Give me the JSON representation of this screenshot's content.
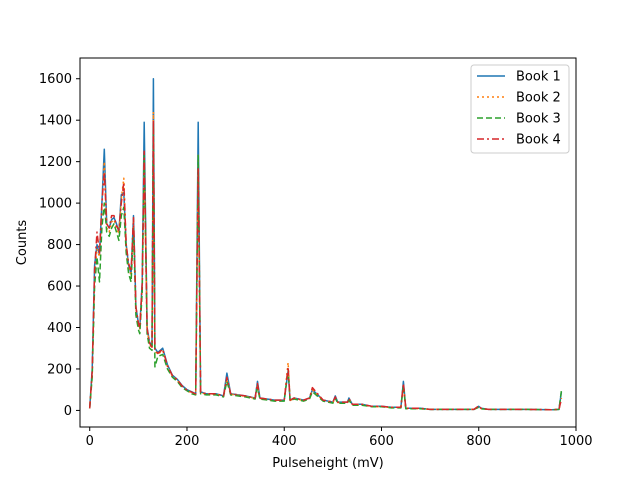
{
  "chart_data": {
    "type": "line",
    "xlabel": "Pulseheight (mV)",
    "ylabel": "Counts",
    "xlim": [
      -20,
      1000
    ],
    "ylim": [
      -80,
      1700
    ],
    "xticks": [
      0,
      200,
      400,
      600,
      800,
      1000
    ],
    "yticks": [
      0,
      200,
      400,
      600,
      800,
      1000,
      1200,
      1400,
      1600
    ],
    "legend_position": "top-right",
    "grid": false,
    "series": [
      {
        "name": "Book 1",
        "color": "#1f77b4",
        "dash": "solid",
        "x": [
          0,
          5,
          10,
          15,
          20,
          25,
          30,
          35,
          40,
          45,
          50,
          55,
          60,
          65,
          70,
          75,
          80,
          85,
          90,
          95,
          100,
          103,
          108,
          112,
          118,
          123,
          128,
          131,
          134,
          140,
          150,
          160,
          170,
          180,
          190,
          200,
          210,
          218,
          223,
          228,
          240,
          260,
          275,
          282,
          290,
          320,
          340,
          345,
          350,
          380,
          400,
          408,
          412,
          420,
          440,
          452,
          458,
          480,
          500,
          505,
          510,
          530,
          533,
          540,
          560,
          580,
          600,
          620,
          640,
          645,
          650,
          680,
          700,
          750,
          790,
          800,
          805,
          820,
          850,
          890,
          900,
          950,
          965,
          970
        ],
        "y": [
          10,
          200,
          700,
          800,
          750,
          1000,
          1260,
          900,
          880,
          920,
          930,
          900,
          860,
          1040,
          1050,
          800,
          700,
          660,
          940,
          500,
          420,
          400,
          620,
          1390,
          400,
          330,
          310,
          1600,
          300,
          280,
          300,
          220,
          170,
          150,
          120,
          100,
          90,
          80,
          1390,
          90,
          80,
          80,
          70,
          180,
          80,
          70,
          60,
          140,
          60,
          50,
          50,
          190,
          50,
          60,
          50,
          60,
          100,
          50,
          40,
          70,
          40,
          40,
          60,
          30,
          30,
          20,
          20,
          15,
          15,
          140,
          10,
          10,
          5,
          5,
          5,
          20,
          10,
          5,
          5,
          5,
          5,
          3,
          5,
          90
        ]
      },
      {
        "name": "Book 2",
        "color": "#ff7f0e",
        "dash": "dotted",
        "x": [
          0,
          5,
          10,
          15,
          20,
          25,
          30,
          35,
          40,
          45,
          50,
          55,
          60,
          65,
          70,
          75,
          80,
          85,
          90,
          95,
          100,
          103,
          108,
          112,
          118,
          123,
          128,
          131,
          134,
          140,
          150,
          160,
          170,
          180,
          190,
          200,
          210,
          218,
          223,
          228,
          240,
          260,
          275,
          282,
          290,
          320,
          340,
          345,
          350,
          380,
          400,
          408,
          412,
          420,
          440,
          452,
          458,
          480,
          500,
          505,
          510,
          530,
          533,
          540,
          560,
          580,
          600,
          620,
          640,
          645,
          650,
          680,
          700,
          750,
          790,
          800,
          805,
          820,
          850,
          890,
          900,
          950,
          965,
          970
        ],
        "y": [
          10,
          180,
          650,
          780,
          740,
          980,
          1200,
          880,
          860,
          910,
          920,
          880,
          850,
          1020,
          1120,
          790,
          690,
          650,
          920,
          490,
          410,
          390,
          600,
          1220,
          390,
          320,
          300,
          1440,
          290,
          270,
          290,
          210,
          165,
          145,
          115,
          95,
          85,
          78,
          1240,
          85,
          78,
          78,
          68,
          150,
          78,
          68,
          58,
          120,
          58,
          48,
          48,
          230,
          48,
          58,
          48,
          58,
          100,
          48,
          38,
          60,
          38,
          38,
          55,
          28,
          28,
          18,
          18,
          14,
          14,
          120,
          9,
          9,
          5,
          5,
          5,
          18,
          9,
          5,
          5,
          5,
          5,
          3,
          5,
          60
        ]
      },
      {
        "name": "Book 3",
        "color": "#2ca02c",
        "dash": "dashed",
        "x": [
          0,
          5,
          10,
          15,
          20,
          25,
          30,
          35,
          40,
          45,
          50,
          55,
          60,
          65,
          70,
          75,
          80,
          85,
          90,
          95,
          100,
          103,
          108,
          112,
          118,
          123,
          128,
          131,
          134,
          140,
          150,
          160,
          170,
          180,
          190,
          200,
          210,
          218,
          223,
          228,
          240,
          260,
          275,
          282,
          290,
          320,
          340,
          345,
          350,
          380,
          400,
          408,
          412,
          420,
          440,
          452,
          458,
          480,
          500,
          505,
          510,
          530,
          533,
          540,
          560,
          580,
          600,
          620,
          640,
          645,
          650,
          680,
          700,
          750,
          790,
          800,
          805,
          820,
          850,
          890,
          900,
          950,
          965,
          970
        ],
        "y": [
          10,
          160,
          600,
          740,
          620,
          880,
          1000,
          860,
          840,
          880,
          900,
          860,
          820,
          940,
          980,
          760,
          660,
          620,
          880,
          460,
          390,
          370,
          570,
          1240,
          370,
          300,
          290,
          1380,
          210,
          260,
          270,
          200,
          160,
          140,
          110,
          95,
          80,
          75,
          1230,
          80,
          75,
          75,
          65,
          140,
          75,
          65,
          55,
          110,
          55,
          45,
          45,
          200,
          45,
          55,
          45,
          55,
          90,
          45,
          35,
          60,
          35,
          35,
          50,
          25,
          25,
          18,
          18,
          12,
          12,
          120,
          8,
          8,
          5,
          5,
          5,
          15,
          8,
          5,
          5,
          5,
          5,
          3,
          5,
          95
        ]
      },
      {
        "name": "Book 4",
        "color": "#d62728",
        "dash": "dashdot",
        "x": [
          0,
          5,
          10,
          15,
          20,
          25,
          30,
          35,
          40,
          45,
          50,
          55,
          60,
          65,
          70,
          75,
          80,
          85,
          90,
          95,
          100,
          103,
          108,
          112,
          118,
          123,
          128,
          131,
          134,
          140,
          150,
          160,
          170,
          180,
          190,
          200,
          210,
          218,
          223,
          228,
          240,
          260,
          275,
          282,
          290,
          320,
          340,
          345,
          350,
          380,
          400,
          408,
          412,
          420,
          440,
          452,
          458,
          480,
          500,
          505,
          510,
          530,
          533,
          540,
          560,
          580,
          600,
          620,
          640,
          645,
          650,
          680,
          700,
          750,
          790,
          800,
          805,
          820,
          850,
          890,
          900,
          950,
          965,
          970
        ],
        "y": [
          10,
          190,
          680,
          860,
          760,
          1000,
          1150,
          900,
          880,
          940,
          940,
          890,
          870,
          1000,
          1100,
          800,
          710,
          670,
          930,
          500,
          420,
          400,
          610,
          1250,
          395,
          325,
          305,
          1400,
          295,
          275,
          295,
          215,
          168,
          148,
          118,
          98,
          88,
          80,
          1170,
          88,
          80,
          80,
          70,
          160,
          80,
          70,
          60,
          130,
          60,
          50,
          50,
          210,
          50,
          60,
          50,
          60,
          110,
          50,
          40,
          65,
          40,
          40,
          58,
          30,
          30,
          20,
          20,
          15,
          15,
          130,
          10,
          10,
          5,
          5,
          5,
          22,
          10,
          5,
          5,
          5,
          5,
          3,
          5,
          55
        ]
      }
    ]
  }
}
